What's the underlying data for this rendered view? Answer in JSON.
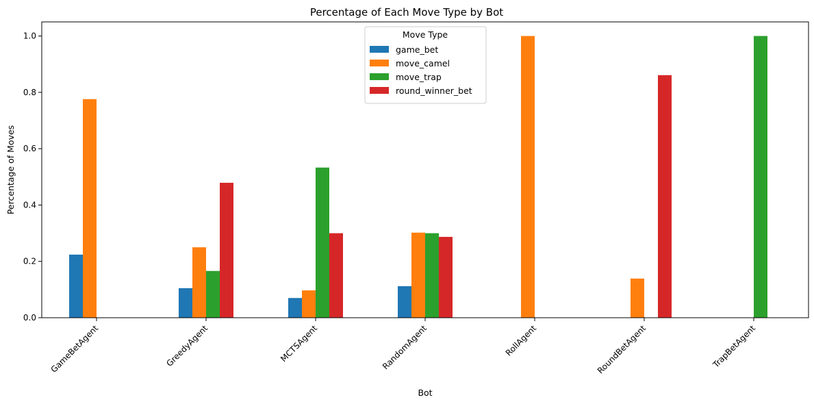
{
  "chart_data": {
    "type": "bar",
    "title": "Percentage of Each Move Type by Bot",
    "xlabel": "Bot",
    "ylabel": "Percentage of Moves",
    "ylim": [
      0,
      1.05
    ],
    "yticks": [
      "0.0",
      "0.2",
      "0.4",
      "0.6",
      "0.8",
      "1.0"
    ],
    "categories": [
      "GameBetAgent",
      "GreedyAgent",
      "MCTSAgent",
      "RandomAgent",
      "RollAgent",
      "RoundBetAgent",
      "TrapBetAgent"
    ],
    "legend": {
      "title": "Move Type",
      "placement": "top-center"
    },
    "grid": false,
    "series": [
      {
        "name": "game_bet",
        "color": "#1f77b4",
        "values": [
          0.224,
          0.105,
          0.07,
          0.112,
          0,
          0,
          0
        ]
      },
      {
        "name": "move_camel",
        "color": "#ff7f0e",
        "values": [
          0.776,
          0.25,
          0.097,
          0.302,
          1.0,
          0.139,
          0
        ]
      },
      {
        "name": "move_trap",
        "color": "#2ca02c",
        "values": [
          0,
          0.166,
          0.533,
          0.3,
          0,
          0,
          1.0
        ]
      },
      {
        "name": "round_winner_bet",
        "color": "#d62728",
        "values": [
          0,
          0.479,
          0.3,
          0.287,
          0,
          0.861,
          0
        ]
      }
    ]
  }
}
